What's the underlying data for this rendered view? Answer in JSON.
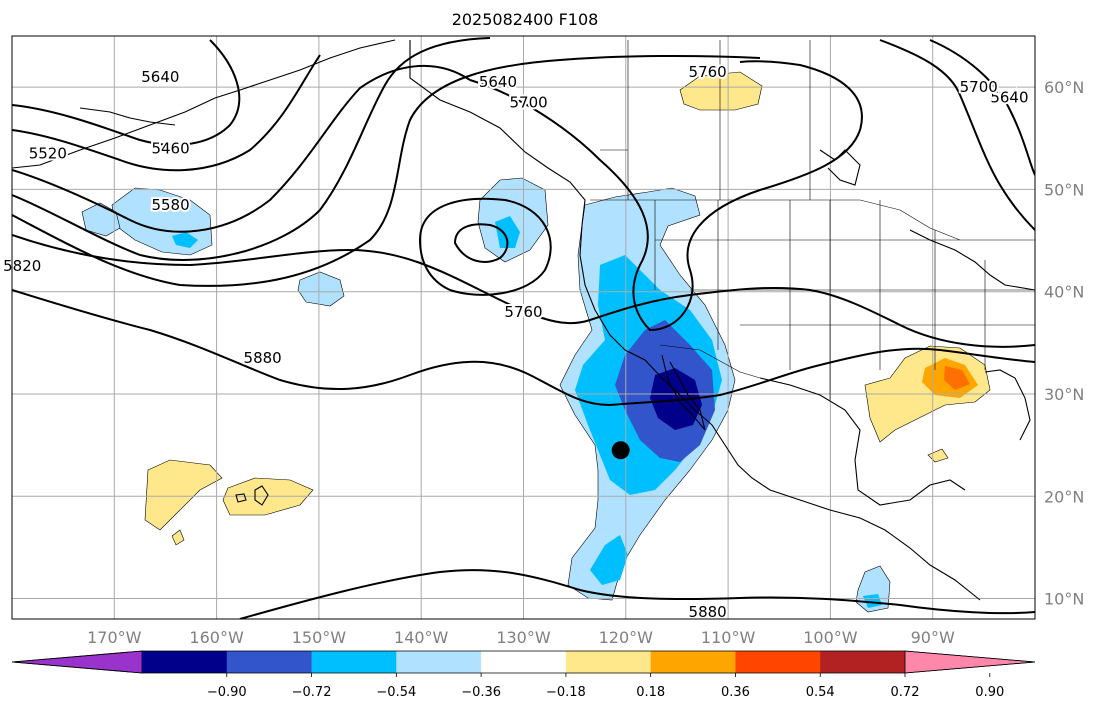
{
  "title": "2025082400 F108",
  "map": {
    "projection": "equirectangular",
    "lon_range": [
      -180,
      -80
    ],
    "lat_range": [
      8,
      65
    ],
    "lon_ticks": [
      "170°W",
      "160°W",
      "150°W",
      "140°W",
      "130°W",
      "120°W",
      "110°W",
      "100°W",
      "90°W"
    ],
    "lat_ticks": [
      "10°N",
      "20°N",
      "30°N",
      "40°N",
      "50°N",
      "60°N"
    ],
    "grid": true,
    "contour_color": "#000000",
    "marker": {
      "lon": -120.5,
      "lat": 24.5,
      "color": "#000000"
    },
    "contour_labels": [
      {
        "text": "5640",
        "lon": -165.5,
        "lat": 61.0
      },
      {
        "text": "5640",
        "lon": -132.5,
        "lat": 60.5
      },
      {
        "text": "5640",
        "lon": -82.5,
        "lat": 59.0
      },
      {
        "text": "5700",
        "lon": -129.5,
        "lat": 58.5
      },
      {
        "text": "5700",
        "lon": -85.5,
        "lat": 60.0
      },
      {
        "text": "5460",
        "lon": -164.5,
        "lat": 54.0
      },
      {
        "text": "5520",
        "lon": -176.5,
        "lat": 53.5
      },
      {
        "text": "5580",
        "lon": -164.5,
        "lat": 48.5
      },
      {
        "text": "5760",
        "lon": -112.0,
        "lat": 61.5
      },
      {
        "text": "5760",
        "lon": -130.0,
        "lat": 38.0
      },
      {
        "text": "5820",
        "lon": -179.0,
        "lat": 42.5
      },
      {
        "text": "5880",
        "lon": -155.5,
        "lat": 33.5
      },
      {
        "text": "5880",
        "lon": -112.0,
        "lat": 8.7
      }
    ]
  },
  "colorbar": {
    "ticks": [
      "−0.90",
      "−0.72",
      "−0.54",
      "−0.36",
      "−0.18",
      "0.18",
      "0.36",
      "0.54",
      "0.72",
      "0.90"
    ],
    "colors": [
      "#9933cc",
      "#00008b",
      "#3355cc",
      "#00bfff",
      "#b0e2ff",
      "#ffffff",
      "#ffe88c",
      "#ffa500",
      "#ff4500",
      "#b22222",
      "#ff88aa"
    ]
  }
}
